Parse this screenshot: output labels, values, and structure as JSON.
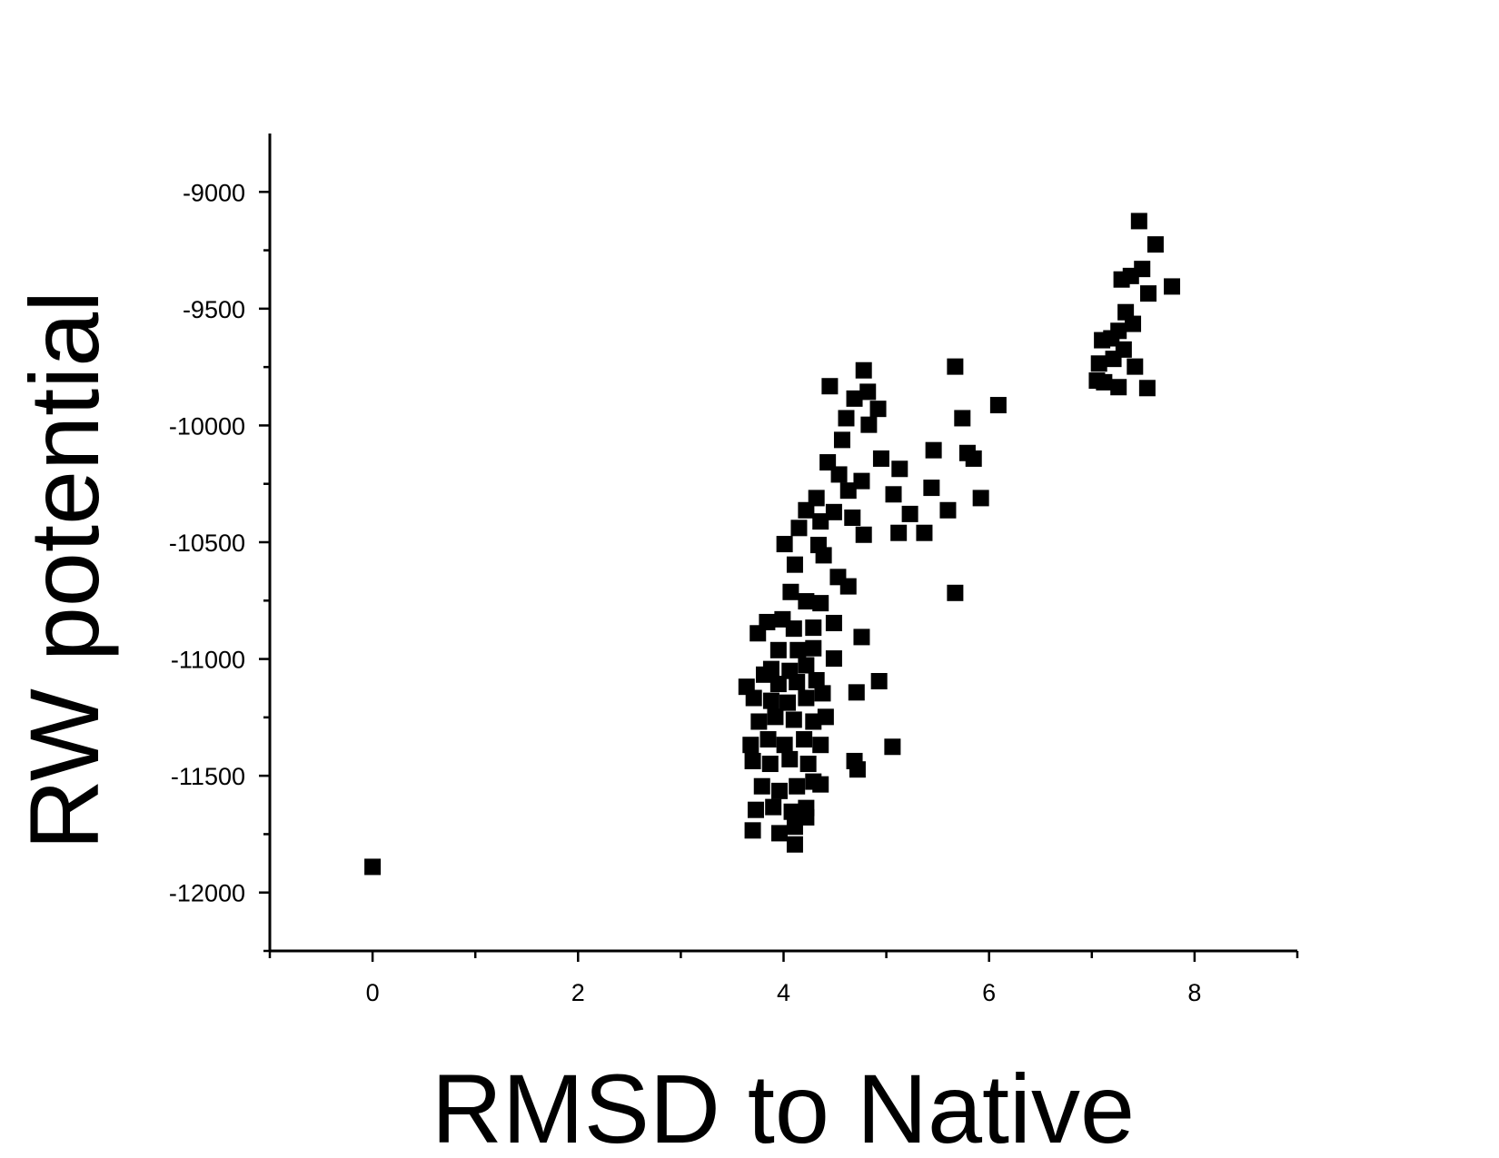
{
  "chart_data": {
    "type": "scatter",
    "x_label": "RMSD to Native",
    "y_label": "RW potential",
    "color": "#000000",
    "xlim": [
      -1,
      9
    ],
    "ylim": [
      -12250,
      -8750
    ],
    "xticks": [
      0,
      2,
      4,
      6,
      8
    ],
    "xticks_minor": [
      -1,
      1,
      3,
      5,
      7,
      9
    ],
    "yticks": [
      -9000,
      -9500,
      -10000,
      -10500,
      -11000,
      -11500,
      -12000
    ],
    "yticks_minor": [
      -9250,
      -9750,
      -10250,
      -10750,
      -11250,
      -11750,
      -12250
    ],
    "x": [
      0,
      7.46,
      7.62,
      7.78,
      7.49,
      7.29,
      7.38,
      7.55,
      7.33,
      7.4,
      7.26,
      7.19,
      7.1,
      7.31,
      7.21,
      7.07,
      7.42,
      7.12,
      7.26,
      7.54,
      7.05,
      5.67,
      6.09,
      5.74,
      5.46,
      5.79,
      5.85,
      5.13,
      5.07,
      5.44,
      5.92,
      5.23,
      5.6,
      5.12,
      5.37,
      5.67,
      4.78,
      4.45,
      4.82,
      4.69,
      4.92,
      4.61,
      4.83,
      4.57,
      4.95,
      4.43,
      4.54,
      4.76,
      4.63,
      4.32,
      4.22,
      4.49,
      4.36,
      4.67,
      4.15,
      4.78,
      4.01,
      4.34,
      4.39,
      4.11,
      4.53,
      4.63,
      4.07,
      4.22,
      4.36,
      4.49,
      4.76,
      4.49,
      4.93,
      4.71,
      4.69,
      4.72,
      5.06,
      4.36,
      4.11,
      3.75,
      3.84,
      3.99,
      4.1,
      4.29,
      3.95,
      4.14,
      4.29,
      3.88,
      4.06,
      4.22,
      3.64,
      3.81,
      3.95,
      4.13,
      4.32,
      3.71,
      3.88,
      4.04,
      4.22,
      4.38,
      3.76,
      3.92,
      4.1,
      4.29,
      4.41,
      3.68,
      3.85,
      4.01,
      4.2,
      4.36,
      3.7,
      3.87,
      4.06,
      4.24,
      3.79,
      3.96,
      4.13,
      4.29,
      3.73,
      3.9,
      4.08,
      4.22,
      3.7,
      3.96,
      4.11,
      4.22
    ],
    "y": [
      -11890,
      -9125,
      -9225,
      -9405,
      -9330,
      -9375,
      -9360,
      -9435,
      -9515,
      -9565,
      -9595,
      -9627,
      -9635,
      -9675,
      -9715,
      -9735,
      -9748,
      -9815,
      -9836,
      -9840,
      -9808,
      -9748,
      -9913,
      -9969,
      -10106,
      -10118,
      -10142,
      -10186,
      -10295,
      -10267,
      -10311,
      -10379,
      -10363,
      -10460,
      -10460,
      -10717,
      -9764,
      -9832,
      -9856,
      -9885,
      -9929,
      -9969,
      -9997,
      -10062,
      -10142,
      -10158,
      -10210,
      -10238,
      -10279,
      -10311,
      -10363,
      -10371,
      -10411,
      -10395,
      -10439,
      -10468,
      -10508,
      -10512,
      -10556,
      -10596,
      -10649,
      -10689,
      -10713,
      -10753,
      -10761,
      -10846,
      -10906,
      -10998,
      -11095,
      -11143,
      -11437,
      -11473,
      -11376,
      -11537,
      -11794,
      -10890,
      -10842,
      -10830,
      -10870,
      -10866,
      -10962,
      -10962,
      -10954,
      -11043,
      -11051,
      -11027,
      -11119,
      -11067,
      -11107,
      -11099,
      -11091,
      -11167,
      -11179,
      -11187,
      -11167,
      -11147,
      -11268,
      -11248,
      -11260,
      -11268,
      -11248,
      -11368,
      -11344,
      -11368,
      -11344,
      -11368,
      -11437,
      -11449,
      -11429,
      -11449,
      -11545,
      -11565,
      -11545,
      -11525,
      -11646,
      -11634,
      -11654,
      -11638,
      -11734,
      -11746,
      -11718,
      -11678
    ]
  }
}
